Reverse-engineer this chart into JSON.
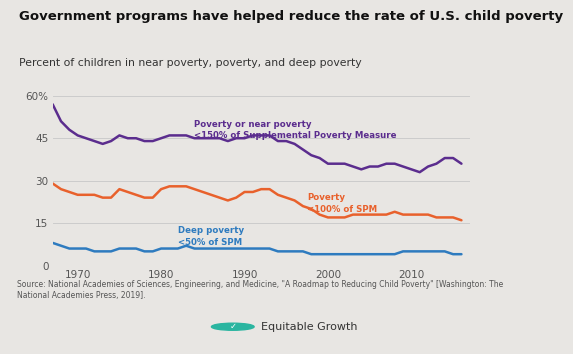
{
  "title": "Government programs have helped reduce the rate of U.S. child poverty",
  "subtitle": "Percent of children in near poverty, poverty, and deep poverty",
  "source": "Source: National Academies of Sciences, Engineering, and Medicine, \"A Roadmap to Reducing Child Poverty\" [Washington: The\nNational Academies Press, 2019].",
  "bg_color": "#e8e6e3",
  "years": [
    1967,
    1968,
    1969,
    1970,
    1971,
    1972,
    1973,
    1974,
    1975,
    1976,
    1977,
    1978,
    1979,
    1980,
    1981,
    1982,
    1983,
    1984,
    1985,
    1986,
    1987,
    1988,
    1989,
    1990,
    1991,
    1992,
    1993,
    1994,
    1995,
    1996,
    1997,
    1998,
    1999,
    2000,
    2001,
    2002,
    2003,
    2004,
    2005,
    2006,
    2007,
    2008,
    2009,
    2010,
    2011,
    2012,
    2013,
    2014,
    2015,
    2016
  ],
  "near_poverty": [
    57,
    51,
    48,
    46,
    45,
    44,
    43,
    44,
    46,
    45,
    45,
    44,
    44,
    45,
    46,
    46,
    46,
    45,
    45,
    45,
    45,
    44,
    45,
    45,
    46,
    46,
    46,
    44,
    44,
    43,
    41,
    39,
    38,
    36,
    36,
    36,
    35,
    34,
    35,
    35,
    36,
    36,
    35,
    34,
    33,
    35,
    36,
    38,
    38,
    36
  ],
  "poverty": [
    29,
    27,
    26,
    25,
    25,
    25,
    24,
    24,
    27,
    26,
    25,
    24,
    24,
    27,
    28,
    28,
    28,
    27,
    26,
    25,
    24,
    23,
    24,
    26,
    26,
    27,
    27,
    25,
    24,
    23,
    21,
    20,
    18,
    17,
    17,
    17,
    18,
    18,
    18,
    18,
    18,
    19,
    18,
    18,
    18,
    18,
    17,
    17,
    17,
    16
  ],
  "deep_poverty": [
    8,
    7,
    6,
    6,
    6,
    5,
    5,
    5,
    6,
    6,
    6,
    5,
    5,
    6,
    6,
    6,
    7,
    6,
    6,
    6,
    6,
    6,
    6,
    6,
    6,
    6,
    6,
    5,
    5,
    5,
    5,
    4,
    4,
    4,
    4,
    4,
    4,
    4,
    4,
    4,
    4,
    4,
    5,
    5,
    5,
    5,
    5,
    5,
    4,
    4
  ],
  "color_near": "#5b2d8e",
  "color_poverty": "#e8612c",
  "color_deep": "#2e7bbf",
  "ylim": [
    0,
    62
  ],
  "yticks": [
    0,
    15,
    30,
    45,
    60
  ],
  "ytick_labels": [
    "0",
    "15",
    "30",
    "45",
    "60%"
  ],
  "xticks": [
    1970,
    1980,
    1990,
    2000,
    2010
  ],
  "label_near": "Poverty or near poverty\n<150% of Supplemental Poverty Measure",
  "label_poverty": "Poverty\n<100% of SPM",
  "label_deep": "Deep poverty\n<50% of SPM",
  "logo_color": "#2ab5a0",
  "logo_text": "Equitable Growth"
}
